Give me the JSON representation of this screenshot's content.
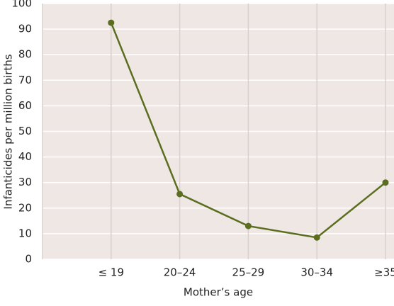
{
  "chart_data": {
    "type": "line",
    "categories": [
      "≤ 19",
      "20–24",
      "25–29",
      "30–34",
      "≥35"
    ],
    "series": [
      {
        "name": "Infanticides",
        "color": "#5b6e20",
        "values": [
          92.5,
          25.5,
          13,
          8.5,
          30
        ]
      }
    ],
    "ylim": [
      0,
      100
    ],
    "yticks": [
      0,
      10,
      20,
      30,
      40,
      50,
      60,
      70,
      80,
      90,
      100
    ],
    "y_label": "Infanticides per million births",
    "x_label": "Mother’s age",
    "grid": true,
    "background": "#efe7e4"
  }
}
